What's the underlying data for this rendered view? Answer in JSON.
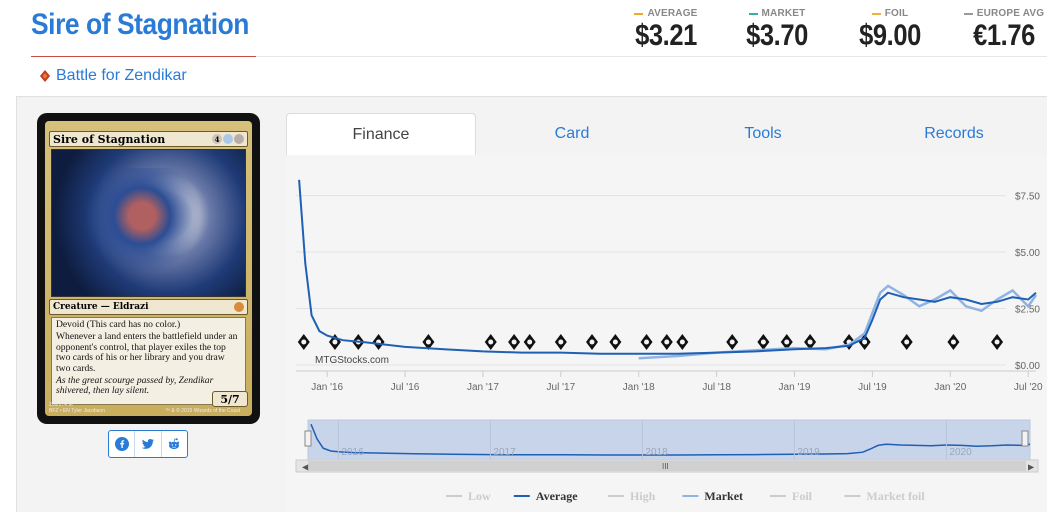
{
  "card_name": "Sire of Stagnation",
  "set_name": "Battle for Zendikar",
  "prices": [
    {
      "label": "AVERAGE",
      "value": "$3.21",
      "color": "#f0a830"
    },
    {
      "label": "MARKET",
      "value": "$3.70",
      "color": "#2fb0a8"
    },
    {
      "label": "FOIL",
      "value": "$9.00",
      "color": "#f0b040"
    },
    {
      "label": "EUROPE AVG",
      "value": "€1.76",
      "color": "#999999"
    }
  ],
  "card_image": {
    "name": "Sire of Stagnation",
    "mana": [
      "4",
      "U",
      "B"
    ],
    "type_line": "Creature — Eldrazi",
    "rules": [
      "Devoid (This card has no color.)",
      "Whenever a land enters the battlefield under an opponent's control, that player exiles the top two cards of his or her library and you draw two cards."
    ],
    "flavor": "As the great scourge passed by, Zendikar shivered, then lay silent.",
    "pt": "5/7",
    "collector": "206/274 M",
    "set_code": "BFZ • EN",
    "artist": "Tyler Jacobson",
    "copyright": "™ & © 2015 Wizards of the Coast"
  },
  "share": [
    "facebook-icon",
    "twitter-icon",
    "reddit-icon"
  ],
  "tabs": [
    "Finance",
    "Card",
    "Tools",
    "Records"
  ],
  "chart": {
    "watermark": "MTGStocks.com",
    "navigator_years": [
      "2016",
      "2017",
      "2018",
      "2019",
      "2020"
    ],
    "legend": [
      {
        "name": "Low",
        "color": "#cccccc",
        "active": false
      },
      {
        "name": "Average",
        "color": "#1f5fb4",
        "active": true
      },
      {
        "name": "High",
        "color": "#cccccc",
        "active": false
      },
      {
        "name": "Market",
        "color": "#8fb4e3",
        "active": true
      },
      {
        "name": "Foil",
        "color": "#cccccc",
        "active": false
      },
      {
        "name": "Market foil",
        "color": "#cccccc",
        "active": false
      }
    ]
  },
  "chart_data": {
    "type": "line",
    "x_tick_labels": [
      "Jan '16",
      "Jul '16",
      "Jan '17",
      "Jul '17",
      "Jan '18",
      "Jul '18",
      "Jan '19",
      "Jul '19",
      "Jan '20",
      "Jul '20"
    ],
    "y_tick_labels": [
      "$0.00",
      "$2.50",
      "$5.00",
      "$7.50"
    ],
    "ylim": [
      0,
      8.5
    ],
    "xlim": [
      2015.8,
      2020.55
    ],
    "grid": true,
    "legend_position": "bottom",
    "series": [
      {
        "name": "Average",
        "color": "#1f5fb4",
        "x": [
          2015.82,
          2015.86,
          2015.9,
          2015.95,
          2016.0,
          2016.1,
          2016.25,
          2016.5,
          2016.75,
          2017.0,
          2017.25,
          2017.5,
          2017.75,
          2018.0,
          2018.25,
          2018.5,
          2018.75,
          2019.0,
          2019.2,
          2019.35,
          2019.45,
          2019.5,
          2019.55,
          2019.6,
          2019.7,
          2019.8,
          2019.9,
          2020.0,
          2020.1,
          2020.2,
          2020.3,
          2020.4,
          2020.5,
          2020.55
        ],
        "y": [
          8.2,
          4.5,
          2.2,
          1.5,
          1.3,
          1.1,
          1.0,
          0.8,
          0.7,
          0.6,
          0.55,
          0.55,
          0.5,
          0.5,
          0.5,
          0.55,
          0.6,
          0.7,
          0.75,
          0.85,
          1.2,
          2.0,
          2.9,
          3.2,
          3.0,
          2.9,
          2.8,
          3.0,
          2.9,
          2.7,
          2.8,
          3.0,
          2.9,
          3.2
        ]
      },
      {
        "name": "Market",
        "color": "#8fb4e3",
        "x": [
          2018.0,
          2018.25,
          2018.5,
          2018.75,
          2019.0,
          2019.2,
          2019.35,
          2019.45,
          2019.5,
          2019.55,
          2019.6,
          2019.7,
          2019.8,
          2019.9,
          2020.0,
          2020.1,
          2020.2,
          2020.3,
          2020.4,
          2020.5,
          2020.55
        ],
        "y": [
          0.3,
          0.4,
          0.55,
          0.65,
          0.75,
          0.7,
          0.9,
          1.4,
          2.3,
          3.2,
          3.5,
          3.1,
          2.6,
          2.9,
          3.3,
          2.6,
          2.4,
          2.9,
          3.3,
          2.6,
          3.1
        ]
      }
    ]
  }
}
